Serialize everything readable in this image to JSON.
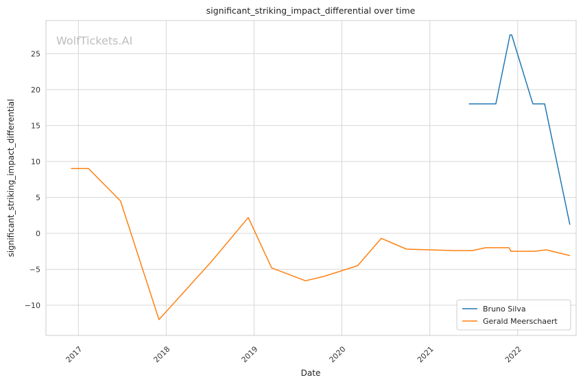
{
  "chart_data": {
    "type": "line",
    "title": "significant_striking_impact_differential over time",
    "xlabel": "Date",
    "ylabel": "significant_striking_impact_differential",
    "watermark": "WolfTickets.AI",
    "x_ticks": [
      "2017",
      "2018",
      "2019",
      "2020",
      "2021",
      "2022"
    ],
    "y_ticks": [
      -10,
      -5,
      0,
      5,
      10,
      15,
      20,
      25
    ],
    "xlim": [
      "2016-08-19",
      "2022-09-01"
    ],
    "ylim": [
      -14.2,
      29.6
    ],
    "grid": true,
    "legend_position": "bottom-right",
    "series": [
      {
        "name": "Bruno Silva",
        "color": "#1f77b4",
        "points": [
          [
            "2021-06-12",
            18.0
          ],
          [
            "2021-10-02",
            18.0
          ],
          [
            "2021-11-30",
            27.6
          ],
          [
            "2021-12-07",
            27.6
          ],
          [
            "2022-03-05",
            18.0
          ],
          [
            "2022-04-23",
            18.0
          ],
          [
            "2022-08-06",
            1.2
          ]
        ]
      },
      {
        "name": "Gerald Meerschaert",
        "color": "#ff7f0e",
        "points": [
          [
            "2016-12-01",
            9.0
          ],
          [
            "2017-02-12",
            9.0
          ],
          [
            "2017-06-25",
            4.5
          ],
          [
            "2017-12-02",
            -12.0
          ],
          [
            "2018-07-06",
            -4.0
          ],
          [
            "2018-12-08",
            2.2
          ],
          [
            "2019-03-15",
            -4.8
          ],
          [
            "2019-08-03",
            -6.6
          ],
          [
            "2019-10-18",
            -6.0
          ],
          [
            "2020-03-07",
            -4.5
          ],
          [
            "2020-06-13",
            -0.7
          ],
          [
            "2020-09-26",
            -2.2
          ],
          [
            "2021-04-17",
            -2.4
          ],
          [
            "2021-06-26",
            -2.4
          ],
          [
            "2021-08-21",
            -2.0
          ],
          [
            "2021-11-26",
            -2.0
          ],
          [
            "2021-12-04",
            -2.5
          ],
          [
            "2022-03-12",
            -2.5
          ],
          [
            "2022-04-30",
            -2.3
          ],
          [
            "2022-08-06",
            -3.1
          ]
        ]
      }
    ]
  }
}
